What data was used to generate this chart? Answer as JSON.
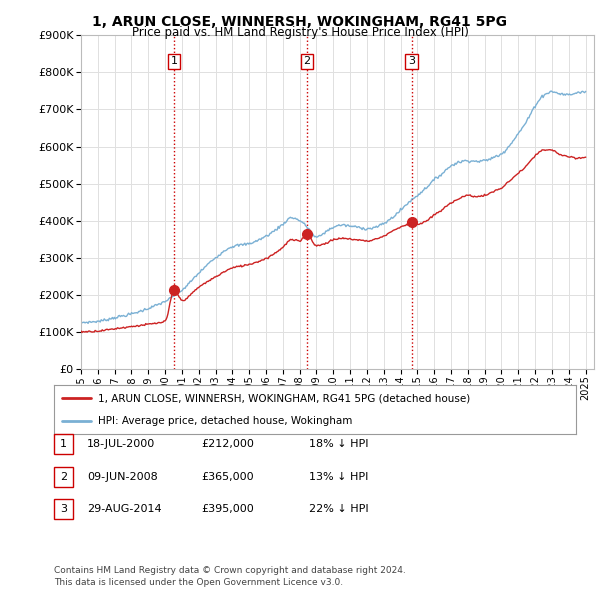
{
  "title": "1, ARUN CLOSE, WINNERSH, WOKINGHAM, RG41 5PG",
  "subtitle": "Price paid vs. HM Land Registry's House Price Index (HPI)",
  "ylim": [
    0,
    900000
  ],
  "xlim_start": 1995,
  "xlim_end": 2025.5,
  "sale_dates": [
    2000.54,
    2008.44,
    2014.66
  ],
  "sale_prices": [
    212000,
    365000,
    395000
  ],
  "sale_labels": [
    "1",
    "2",
    "3"
  ],
  "vline_color": "#cc0000",
  "red_line_color": "#cc2222",
  "blue_line_color": "#7ab0d4",
  "legend_red_label": "1, ARUN CLOSE, WINNERSH, WOKINGHAM, RG41 5PG (detached house)",
  "legend_blue_label": "HPI: Average price, detached house, Wokingham",
  "table_rows": [
    {
      "num": "1",
      "date": "18-JUL-2000",
      "price": "£212,000",
      "pct": "18% ↓ HPI"
    },
    {
      "num": "2",
      "date": "09-JUN-2008",
      "price": "£365,000",
      "pct": "13% ↓ HPI"
    },
    {
      "num": "3",
      "date": "29-AUG-2014",
      "price": "£395,000",
      "pct": "22% ↓ HPI"
    }
  ],
  "footnote": "Contains HM Land Registry data © Crown copyright and database right 2024.\nThis data is licensed under the Open Government Licence v3.0.",
  "background_color": "#ffffff",
  "grid_color": "#e0e0e0",
  "hpi_points": [
    [
      1995.0,
      125000
    ],
    [
      1996.0,
      128000
    ],
    [
      1997.0,
      138000
    ],
    [
      1998.0,
      148000
    ],
    [
      1999.0,
      163000
    ],
    [
      2000.0,
      182000
    ],
    [
      2001.0,
      212000
    ],
    [
      2002.0,
      258000
    ],
    [
      2003.0,
      300000
    ],
    [
      2004.0,
      330000
    ],
    [
      2005.0,
      338000
    ],
    [
      2006.0,
      358000
    ],
    [
      2007.0,
      390000
    ],
    [
      2007.5,
      408000
    ],
    [
      2008.0,
      400000
    ],
    [
      2008.5,
      380000
    ],
    [
      2009.0,
      355000
    ],
    [
      2009.5,
      368000
    ],
    [
      2010.0,
      382000
    ],
    [
      2010.5,
      388000
    ],
    [
      2011.0,
      385000
    ],
    [
      2011.5,
      382000
    ],
    [
      2012.0,
      378000
    ],
    [
      2012.5,
      382000
    ],
    [
      2013.0,
      392000
    ],
    [
      2013.5,
      408000
    ],
    [
      2014.0,
      428000
    ],
    [
      2014.5,
      450000
    ],
    [
      2015.0,
      468000
    ],
    [
      2015.5,
      488000
    ],
    [
      2016.0,
      510000
    ],
    [
      2016.5,
      528000
    ],
    [
      2017.0,
      548000
    ],
    [
      2017.5,
      558000
    ],
    [
      2018.0,
      562000
    ],
    [
      2018.5,
      560000
    ],
    [
      2019.0,
      562000
    ],
    [
      2019.5,
      570000
    ],
    [
      2020.0,
      580000
    ],
    [
      2020.5,
      605000
    ],
    [
      2021.0,
      635000
    ],
    [
      2021.5,
      668000
    ],
    [
      2022.0,
      710000
    ],
    [
      2022.5,
      738000
    ],
    [
      2023.0,
      748000
    ],
    [
      2023.5,
      742000
    ],
    [
      2024.0,
      740000
    ],
    [
      2024.5,
      745000
    ],
    [
      2025.0,
      748000
    ]
  ],
  "red_points": [
    [
      1995.0,
      100000
    ],
    [
      1996.0,
      102000
    ],
    [
      1997.0,
      108000
    ],
    [
      1998.0,
      114000
    ],
    [
      1999.0,
      120000
    ],
    [
      2000.0,
      128000
    ],
    [
      2000.54,
      212000
    ],
    [
      2001.0,
      185000
    ],
    [
      2002.0,
      220000
    ],
    [
      2003.0,
      248000
    ],
    [
      2004.0,
      272000
    ],
    [
      2005.0,
      282000
    ],
    [
      2006.0,
      298000
    ],
    [
      2007.0,
      328000
    ],
    [
      2007.5,
      348000
    ],
    [
      2008.0,
      345000
    ],
    [
      2008.44,
      365000
    ],
    [
      2008.8,
      342000
    ],
    [
      2009.0,
      332000
    ],
    [
      2009.5,
      338000
    ],
    [
      2010.0,
      348000
    ],
    [
      2010.5,
      352000
    ],
    [
      2011.0,
      350000
    ],
    [
      2011.5,
      348000
    ],
    [
      2012.0,
      345000
    ],
    [
      2012.5,
      350000
    ],
    [
      2013.0,
      358000
    ],
    [
      2013.5,
      372000
    ],
    [
      2014.0,
      382000
    ],
    [
      2014.5,
      392000
    ],
    [
      2014.66,
      395000
    ],
    [
      2015.0,
      390000
    ],
    [
      2015.5,
      398000
    ],
    [
      2016.0,
      415000
    ],
    [
      2016.5,
      430000
    ],
    [
      2017.0,
      448000
    ],
    [
      2017.5,
      460000
    ],
    [
      2018.0,
      468000
    ],
    [
      2018.5,
      465000
    ],
    [
      2019.0,
      468000
    ],
    [
      2019.5,
      478000
    ],
    [
      2020.0,
      488000
    ],
    [
      2020.5,
      508000
    ],
    [
      2021.0,
      528000
    ],
    [
      2021.5,
      548000
    ],
    [
      2022.0,
      575000
    ],
    [
      2022.5,
      590000
    ],
    [
      2023.0,
      590000
    ],
    [
      2023.5,
      578000
    ],
    [
      2024.0,
      572000
    ],
    [
      2024.5,
      568000
    ],
    [
      2025.0,
      572000
    ]
  ]
}
